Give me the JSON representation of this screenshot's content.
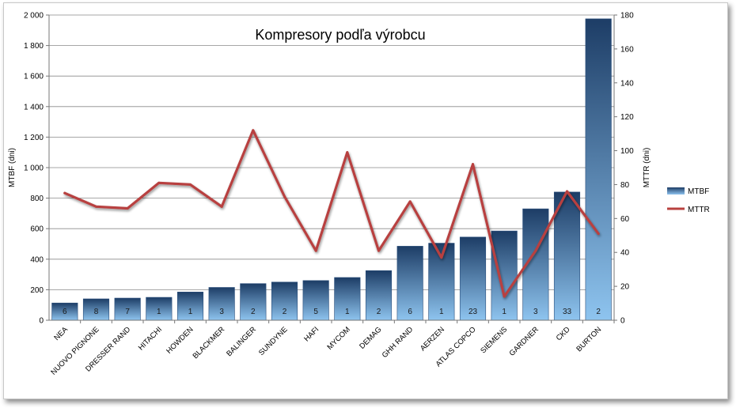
{
  "chart_data": {
    "type": "bar",
    "title": "Kompresory podľa výrobcu",
    "categories": [
      "NEA",
      "NUOVO PIGNONE",
      "DRESSER RAND",
      "HITACHI",
      "HOWDEN",
      "BLACKMER",
      "BALINGER",
      "SUNDYNE",
      "HAFI",
      "MYCOM",
      "DEMAG",
      "GHH RAND",
      "AERZEN",
      "ATLAS COPCO",
      "SIEMENS",
      "GARDNER",
      "CKD",
      "BURTON"
    ],
    "counts": [
      "6",
      "8",
      "7",
      "1",
      "1",
      "3",
      "2",
      "2",
      "5",
      "1",
      "2",
      "6",
      "1",
      "23",
      "1",
      "3",
      "33",
      "2"
    ],
    "series": [
      {
        "name": "MTBF",
        "type": "bar",
        "axis": "left",
        "values": [
          113,
          140,
          145,
          150,
          185,
          215,
          240,
          250,
          260,
          280,
          325,
          485,
          505,
          545,
          585,
          730,
          840,
          1975
        ]
      },
      {
        "name": "MTTR",
        "type": "line",
        "axis": "right",
        "values": [
          75,
          67,
          66,
          81,
          80,
          67,
          112,
          73,
          41,
          99,
          41,
          70,
          37,
          92,
          14,
          41,
          76,
          51
        ]
      }
    ],
    "ylabel": "MTBF (dni)",
    "y2label": "MTTR (dni)",
    "ylim": [
      0,
      2000
    ],
    "y2lim": [
      0,
      180
    ],
    "yticks": [
      "0",
      "200",
      "400",
      "600",
      "800",
      "1 000",
      "1 200",
      "1 400",
      "1 600",
      "1 800",
      "2 000"
    ],
    "y2ticks": [
      "0",
      "20",
      "40",
      "60",
      "80",
      "100",
      "120",
      "140",
      "160",
      "180"
    ],
    "grid": true,
    "legend": "right",
    "colors": {
      "bar_top": "#1d3d66",
      "bar_bottom": "#8ec4ef",
      "line": "#b8413f"
    }
  }
}
